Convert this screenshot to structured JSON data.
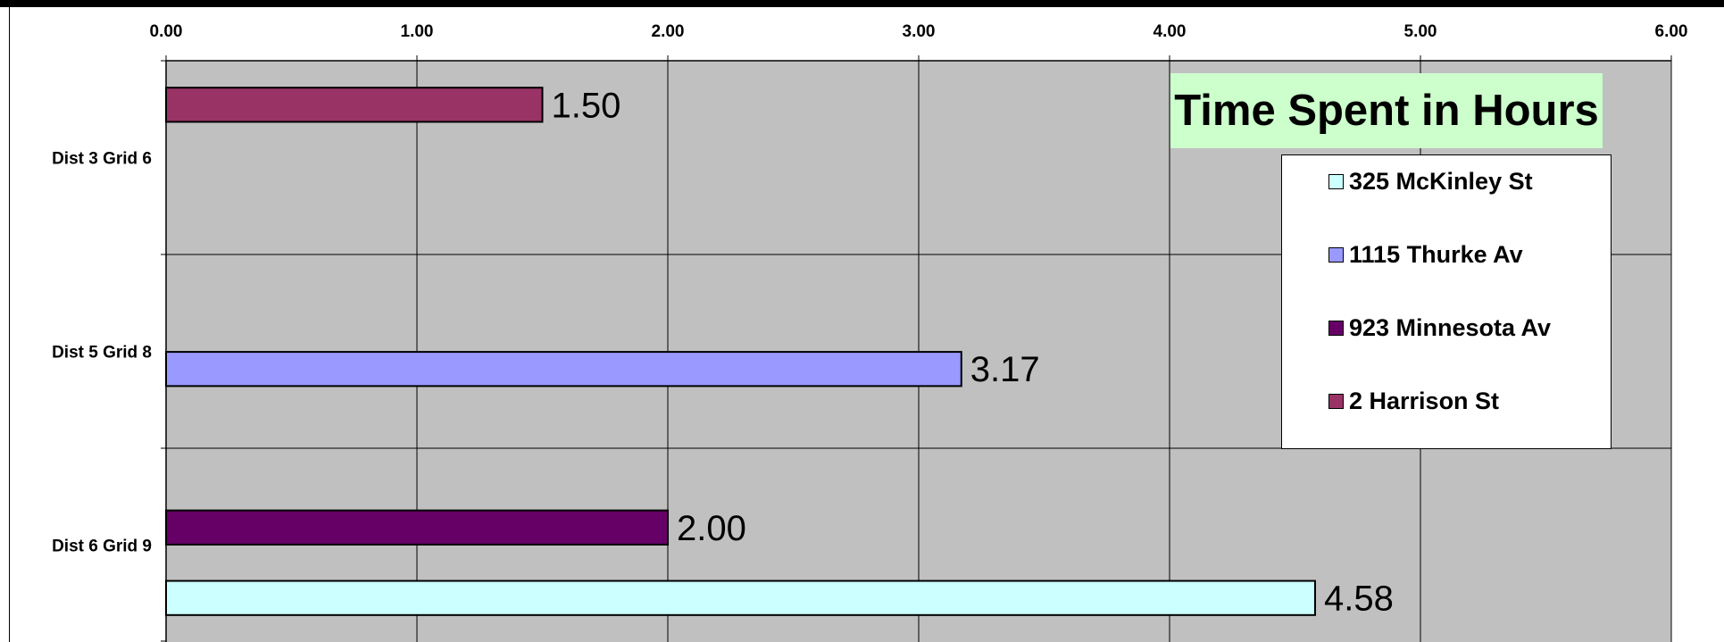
{
  "chart_data": {
    "type": "bar",
    "orientation": "horizontal",
    "title": "Time Spent in Hours",
    "xlim": [
      0,
      6
    ],
    "x_ticks": [
      "0.00",
      "1.00",
      "2.00",
      "3.00",
      "4.00",
      "5.00",
      "6.00"
    ],
    "x_axis_position": "top",
    "grid": true,
    "plot_background": "#c0c0c0",
    "legend_position": "right",
    "categories": [
      "Dist 3 Grid 6",
      "Dist 5 Grid 8",
      "Dist 6 Grid 9"
    ],
    "series": [
      {
        "name": "325 McKinley St",
        "color": "#ccffff",
        "values": [
          null,
          null,
          4.58
        ],
        "labels": [
          "",
          "",
          "4.58"
        ]
      },
      {
        "name": "1115 Thurke Av",
        "color": "#9999ff",
        "values": [
          null,
          3.17,
          null
        ],
        "labels": [
          "",
          "3.17",
          ""
        ]
      },
      {
        "name": "923 Minnesota Av",
        "color": "#660066",
        "values": [
          null,
          null,
          2.0
        ],
        "labels": [
          "",
          "",
          "2.00"
        ]
      },
      {
        "name": "2 Harrison St",
        "color": "#993366",
        "values": [
          1.5,
          null,
          null
        ],
        "labels": [
          "1.50",
          "",
          ""
        ]
      }
    ]
  }
}
